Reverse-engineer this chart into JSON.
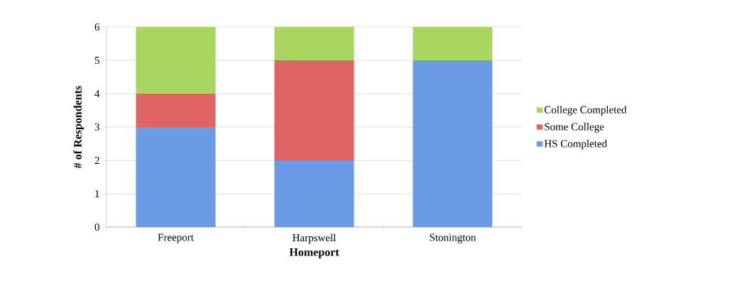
{
  "chart_data": {
    "type": "bar",
    "stacked": true,
    "xlabel": "Homeport",
    "ylabel": "# of Respondents",
    "categories": [
      "Freeport",
      "Harpswell",
      "Stonington"
    ],
    "series": [
      {
        "name": "HS Completed",
        "color": "#6a9be4",
        "values": [
          3,
          2,
          5
        ]
      },
      {
        "name": "Some College",
        "color": "#e06464",
        "values": [
          1,
          3,
          0
        ]
      },
      {
        "name": "College Completed",
        "color": "#a8d660",
        "values": [
          2,
          1,
          1
        ]
      }
    ],
    "ylim": [
      0,
      6
    ],
    "yticks": [
      0,
      1,
      2,
      3,
      4,
      5,
      6
    ],
    "grid": "y",
    "legend": "right"
  }
}
